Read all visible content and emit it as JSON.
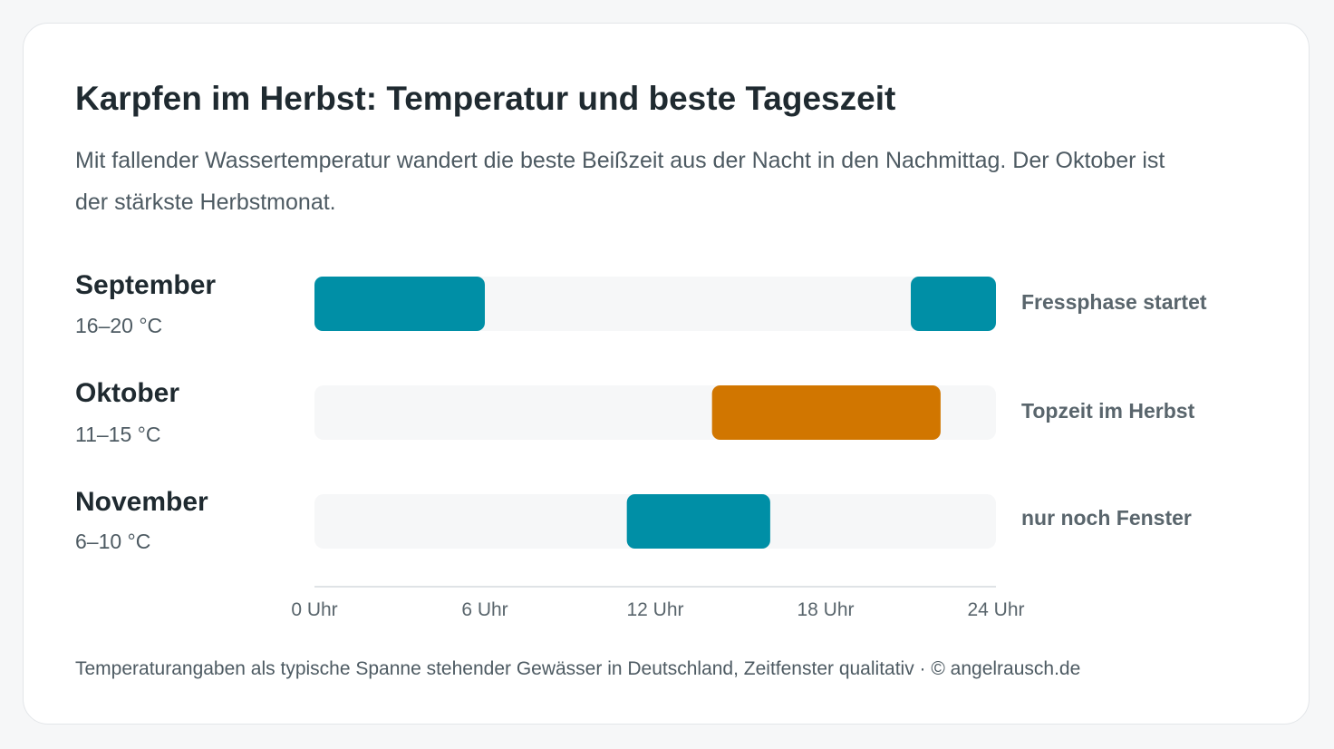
{
  "chart_data": {
    "type": "bar",
    "title": "Karpfen im Herbst: Temperatur und beste Tageszeit",
    "subtitle": "Mit fallender Wassertemperatur wandert die beste Beißzeit aus der Nacht in den Nachmittag. Der Oktober ist der stärkste Herbstmonat.",
    "x_axis": {
      "min": 0,
      "max": 24,
      "ticks": [
        {
          "value": 0,
          "label": "0 Uhr"
        },
        {
          "value": 6,
          "label": "6 Uhr"
        },
        {
          "value": 12,
          "label": "12 Uhr"
        },
        {
          "value": 18,
          "label": "18 Uhr"
        },
        {
          "value": 24,
          "label": "24 Uhr"
        }
      ]
    },
    "rows": [
      {
        "month": "September",
        "temperature": "16–20 °C",
        "note": "Fressphase startet",
        "color": "#008fa6",
        "windows": [
          [
            0,
            6
          ],
          [
            21,
            24
          ]
        ]
      },
      {
        "month": "Oktober",
        "temperature": "11–15 °C",
        "note": "Topzeit im Herbst",
        "color": "#d17600",
        "windows": [
          [
            14,
            22.05
          ]
        ]
      },
      {
        "month": "November",
        "temperature": "6–10 °C",
        "note": "nur noch Fenster",
        "color": "#008fa6",
        "windows": [
          [
            11,
            16.05
          ]
        ]
      }
    ],
    "colors": {
      "track": "#f6f7f8",
      "accent_teal": "#008fa6",
      "accent_orange": "#d17600"
    },
    "footer": "Temperaturangaben als typische Spanne stehender Gewässer in Deutschland, Zeitfenster qualitativ · © angelrausch.de"
  }
}
